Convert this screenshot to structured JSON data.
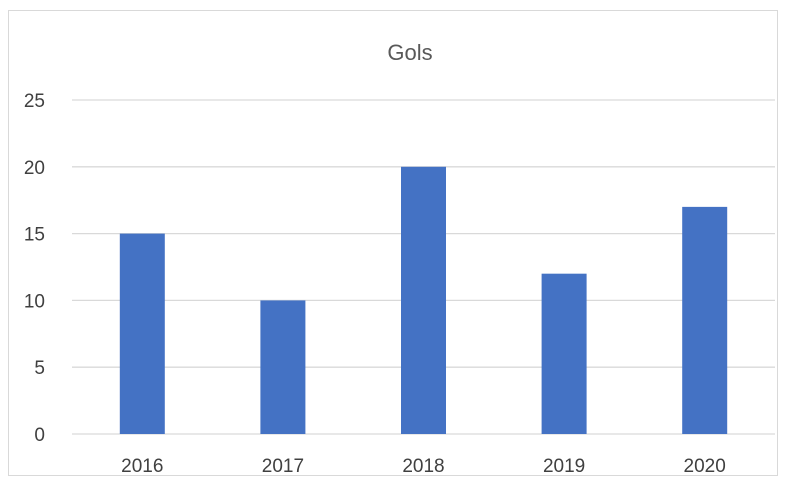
{
  "chart_data": {
    "type": "bar",
    "title": "Gols",
    "categories": [
      "2016",
      "2017",
      "2018",
      "2019",
      "2020"
    ],
    "values": [
      15,
      10,
      20,
      12,
      17
    ],
    "xlabel": "",
    "ylabel": "",
    "ylim": [
      0,
      25
    ],
    "yticks": [
      "0",
      "5",
      "10",
      "15",
      "20",
      "25"
    ],
    "grid": true,
    "legend": "none",
    "bar_color": "#4472c4",
    "grid_color": "#d9d9d9"
  }
}
